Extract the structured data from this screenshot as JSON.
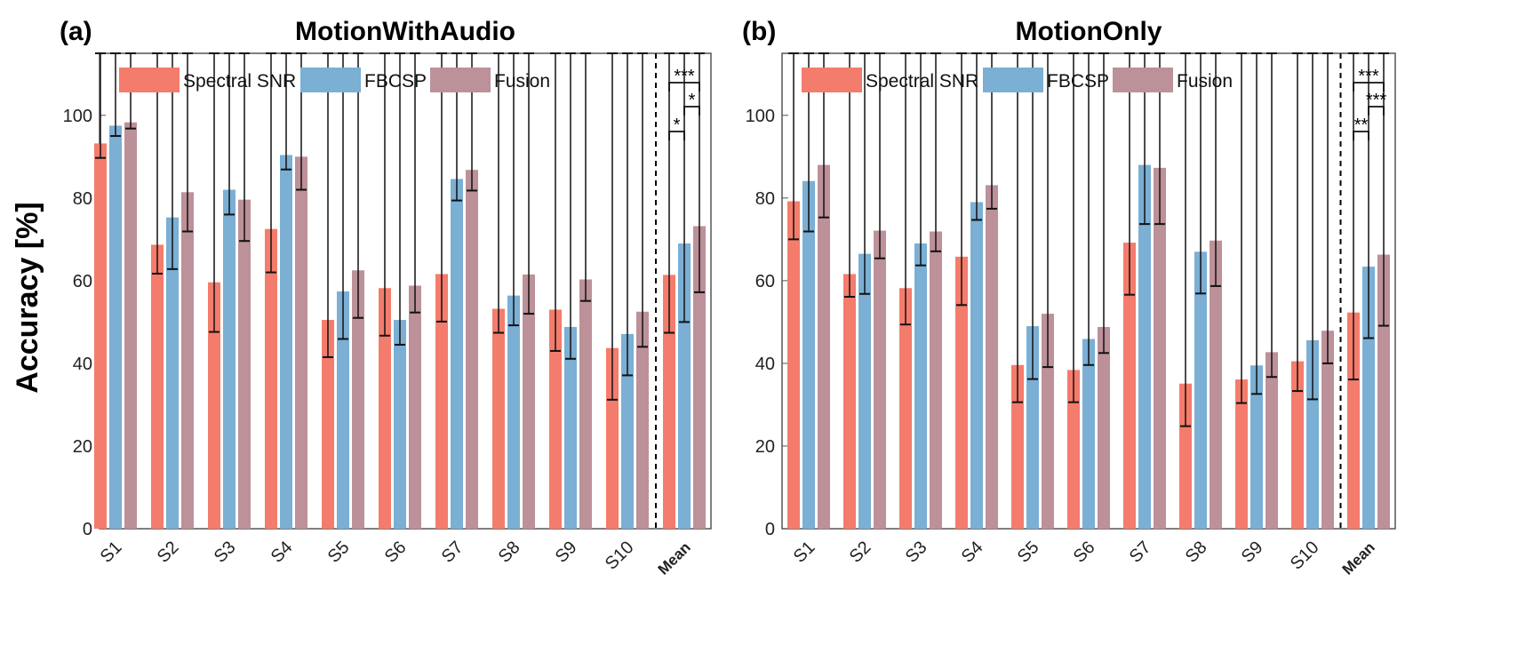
{
  "figure": {
    "ylabel": "Accuracy [%]",
    "colors": {
      "Spectral SNR": "#F47C6C",
      "FBCSP": "#7BAFD4",
      "Fusion": "#BC9199"
    }
  },
  "chart_data": [
    {
      "type": "bar",
      "panel": "(a)",
      "title": "MotionWithAudio",
      "ylabel": "Accuracy [%]",
      "ylim": [
        0,
        115
      ],
      "yticks": [
        0,
        20,
        40,
        60,
        80,
        100
      ],
      "categories": [
        "S1",
        "S2",
        "S3",
        "S4",
        "S5",
        "S6",
        "S7",
        "S8",
        "S9",
        "S10",
        "Mean"
      ],
      "legend": "top-left",
      "grid": false,
      "separator_before": "Mean",
      "series": [
        {
          "name": "Spectral SNR",
          "values": [
            93.2,
            68.7,
            59.6,
            72.5,
            50.5,
            58.2,
            61.6,
            53.2,
            53.0,
            43.7,
            61.4
          ],
          "errors": [
            3.5,
            7.0,
            12.0,
            10.5,
            9.0,
            11.5,
            11.5,
            5.8,
            10.0,
            12.5,
            14.0
          ]
        },
        {
          "name": "FBCSP",
          "values": [
            97.5,
            75.3,
            82.0,
            90.4,
            57.4,
            50.5,
            84.6,
            56.4,
            48.8,
            47.1,
            69.0
          ],
          "errors": [
            2.5,
            12.5,
            6.0,
            3.5,
            11.5,
            6.0,
            5.2,
            7.2,
            7.7,
            10.0,
            19.0
          ]
        },
        {
          "name": "Fusion",
          "values": [
            98.3,
            81.4,
            79.6,
            90.0,
            62.5,
            58.8,
            86.8,
            61.5,
            60.3,
            52.5,
            73.2
          ],
          "errors": [
            1.5,
            9.5,
            10.0,
            8.0,
            11.5,
            6.5,
            5.0,
            9.5,
            5.2,
            8.5,
            16.0
          ]
        }
      ],
      "significance": [
        {
          "pair": [
            "Spectral SNR",
            "Fusion"
          ],
          "label": "***"
        },
        {
          "pair": [
            "FBCSP",
            "Fusion"
          ],
          "label": "*"
        },
        {
          "pair": [
            "Spectral SNR",
            "FBCSP"
          ],
          "label": "*"
        }
      ]
    },
    {
      "type": "bar",
      "panel": "(b)",
      "title": "MotionOnly",
      "ylim": [
        0,
        115
      ],
      "yticks": [
        0,
        20,
        40,
        60,
        80,
        100
      ],
      "categories": [
        "S1",
        "S2",
        "S3",
        "S4",
        "S5",
        "S6",
        "S7",
        "S8",
        "S9",
        "S10",
        "Mean"
      ],
      "legend": "top-left",
      "grid": false,
      "separator_before": "Mean",
      "series": [
        {
          "name": "Spectral SNR",
          "values": [
            79.2,
            61.6,
            58.2,
            65.8,
            39.6,
            38.4,
            69.2,
            35.1,
            36.1,
            40.5,
            52.3
          ],
          "errors": [
            9.2,
            5.5,
            8.8,
            11.7,
            9.0,
            7.8,
            12.6,
            10.3,
            5.7,
            7.2,
            16.2
          ]
        },
        {
          "name": "FBCSP",
          "values": [
            84.1,
            66.5,
            69.0,
            79.0,
            49.0,
            45.9,
            88.0,
            67.0,
            39.5,
            45.6,
            63.4
          ],
          "errors": [
            12.2,
            9.7,
            5.3,
            4.3,
            12.8,
            6.3,
            14.3,
            10.1,
            6.9,
            14.3,
            17.3
          ]
        },
        {
          "name": "Fusion",
          "values": [
            88.0,
            72.1,
            71.9,
            83.1,
            52.0,
            48.8,
            87.3,
            69.7,
            42.7,
            47.9,
            66.3
          ],
          "errors": [
            12.7,
            6.7,
            4.8,
            5.7,
            12.9,
            6.3,
            13.6,
            11.0,
            6.0,
            7.9,
            17.2
          ]
        }
      ],
      "significance": [
        {
          "pair": [
            "Spectral SNR",
            "Fusion"
          ],
          "label": "***"
        },
        {
          "pair": [
            "FBCSP",
            "Fusion"
          ],
          "label": "***"
        },
        {
          "pair": [
            "Spectral SNR",
            "FBCSP"
          ],
          "label": "**"
        }
      ]
    }
  ]
}
